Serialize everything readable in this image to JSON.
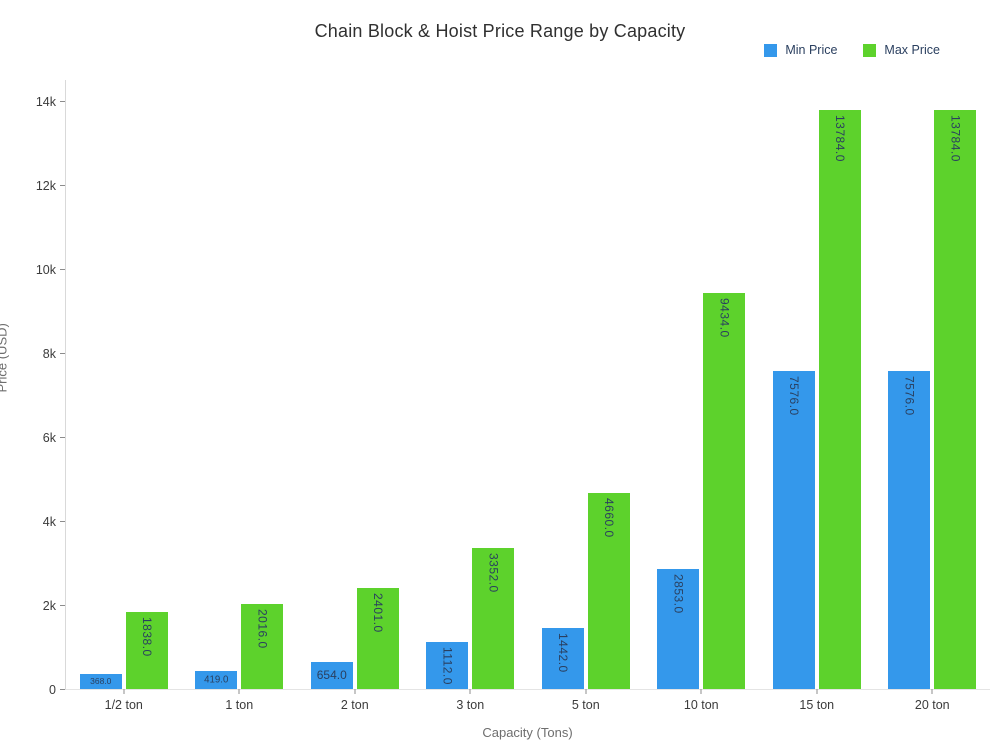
{
  "chart_data": {
    "type": "bar",
    "title": "Chain Block & Hoist Price Range by Capacity",
    "xlabel": "Capacity (Tons)",
    "ylabel": "Price (USD)",
    "categories": [
      "1/2 ton",
      "1 ton",
      "2 ton",
      "3 ton",
      "5 ton",
      "10 ton",
      "15 ton",
      "20 ton"
    ],
    "series": [
      {
        "name": "Min Price",
        "color": "#3498EB",
        "values": [
          368.0,
          419.0,
          654.0,
          1112.0,
          1442.0,
          2853.0,
          7576.0,
          7576.0
        ]
      },
      {
        "name": "Max Price",
        "color": "#5DD22C",
        "values": [
          1838.0,
          2016.0,
          2401.0,
          3352.0,
          4660.0,
          9434.0,
          13784.0,
          13784.0
        ]
      }
    ],
    "bar_value_labels": [
      "368.0",
      "419.0",
      "654.0",
      "1112.0",
      "1442.0",
      "2853.0",
      "7576.0",
      "7576.0",
      "1838.0",
      "2016.0",
      "2401.0",
      "3352.0",
      "4660.0",
      "9434.0",
      "13784.0",
      "13784.0"
    ],
    "ylim": [
      0,
      14500
    ],
    "yticks": {
      "values": [
        0,
        2000,
        4000,
        6000,
        8000,
        10000,
        12000,
        14000
      ],
      "labels": [
        "0",
        "2k",
        "4k",
        "6k",
        "8k",
        "10k",
        "12k",
        "14k"
      ]
    },
    "grid": false,
    "legend_position": "top-right",
    "label_text_color": "#2a3f5f"
  }
}
